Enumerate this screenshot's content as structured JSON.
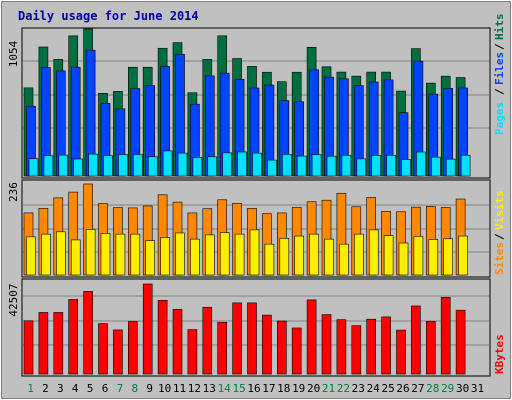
{
  "title": "Daily usage for June 2014",
  "colors": {
    "frame": "#c0c0c0",
    "plot_bg": "#c0c0c0",
    "title_text": "#0000aa",
    "hits": "#006f3f",
    "files": "#0044ff",
    "pages": "#00e0ff",
    "visits": "#ff8800",
    "sites": "#ffee00",
    "kbytes": "#ff0000",
    "weekday_label": "#000000",
    "weekend_label": "#007f3f"
  },
  "chart_data": [
    {
      "type": "bar",
      "panel": "top",
      "max_label": "1054",
      "ylim": [
        0,
        1054
      ],
      "grid": true,
      "legend": {
        "hits": "Hits",
        "files": "Files",
        "pages": "Pages",
        "separator": "/"
      },
      "categories": [
        "1",
        "2",
        "3",
        "4",
        "5",
        "6",
        "7",
        "8",
        "9",
        "10",
        "11",
        "12",
        "13",
        "14",
        "15",
        "16",
        "17",
        "18",
        "19",
        "20",
        "21",
        "22",
        "23",
        "24",
        "25",
        "26",
        "27",
        "28",
        "29",
        "30",
        "31"
      ],
      "series": [
        {
          "name": "Hits",
          "values": [
            632,
            925,
            836,
            1005,
            1054,
            593,
            607,
            780,
            780,
            916,
            956,
            597,
            836,
            1005,
            842,
            786,
            744,
            676,
            744,
            923,
            783,
            745,
            716,
            745,
            745,
            609,
            913,
            666,
            716,
            706,
            0
          ]
        },
        {
          "name": "Files",
          "values": [
            500,
            778,
            754,
            780,
            902,
            521,
            482,
            627,
            648,
            785,
            872,
            515,
            718,
            737,
            693,
            631,
            652,
            541,
            532,
            761,
            709,
            697,
            648,
            674,
            689,
            454,
            823,
            587,
            628,
            631,
            0
          ]
        },
        {
          "name": "Pages",
          "values": [
            124,
            146,
            150,
            122,
            157,
            147,
            154,
            154,
            138,
            180,
            164,
            133,
            138,
            166,
            172,
            164,
            114,
            155,
            143,
            153,
            142,
            148,
            123,
            147,
            148,
            119,
            172,
            135,
            121,
            149,
            0
          ]
        }
      ]
    },
    {
      "type": "bar",
      "panel": "middle",
      "max_label": "236",
      "ylim": [
        0,
        236
      ],
      "grid": true,
      "legend": {
        "visits": "Visits",
        "sites": "Sites",
        "separator": "/"
      },
      "categories": [
        "1",
        "2",
        "3",
        "4",
        "5",
        "6",
        "7",
        "8",
        "9",
        "10",
        "11",
        "12",
        "13",
        "14",
        "15",
        "16",
        "17",
        "18",
        "19",
        "20",
        "21",
        "22",
        "23",
        "24",
        "25",
        "26",
        "27",
        "28",
        "29",
        "30",
        "31"
      ],
      "series": [
        {
          "name": "Visits",
          "values": [
            161,
            173,
            200,
            215,
            236,
            185,
            175,
            174,
            179,
            208,
            189,
            161,
            172,
            195,
            186,
            173,
            159,
            161,
            175,
            190,
            194,
            212,
            177,
            201,
            165,
            164,
            176,
            178,
            175,
            197,
            0
          ]
        },
        {
          "name": "Sites",
          "values": [
            99,
            106,
            112,
            91,
            118,
            108,
            106,
            106,
            89,
            97,
            109,
            93,
            104,
            110,
            106,
            117,
            80,
            95,
            101,
            106,
            93,
            80,
            106,
            117,
            102,
            83,
            100,
            92,
            94,
            101,
            0
          ]
        }
      ]
    },
    {
      "type": "bar",
      "panel": "bottom",
      "max_label": "42507",
      "ylim": [
        0,
        42507
      ],
      "grid": true,
      "legend": {
        "kbytes": "KBytes"
      },
      "categories": [
        "1",
        "2",
        "3",
        "4",
        "5",
        "6",
        "7",
        "8",
        "9",
        "10",
        "11",
        "12",
        "13",
        "14",
        "15",
        "16",
        "17",
        "18",
        "19",
        "20",
        "21",
        "22",
        "23",
        "24",
        "25",
        "26",
        "27",
        "28",
        "29",
        "30",
        "31"
      ],
      "series": [
        {
          "name": "KBytes",
          "values": [
            25140,
            29064,
            29059,
            35196,
            39025,
            23828,
            20814,
            24750,
            42507,
            34810,
            30514,
            20964,
            31532,
            24416,
            33586,
            33586,
            27824,
            25032,
            21740,
            34990,
            28050,
            25644,
            22832,
            25884,
            26962,
            20734,
            32134,
            24818,
            36196,
            30146,
            0
          ]
        }
      ]
    }
  ],
  "weekend_days": [
    "1",
    "7",
    "8",
    "14",
    "15",
    "21",
    "22",
    "28",
    "29"
  ]
}
